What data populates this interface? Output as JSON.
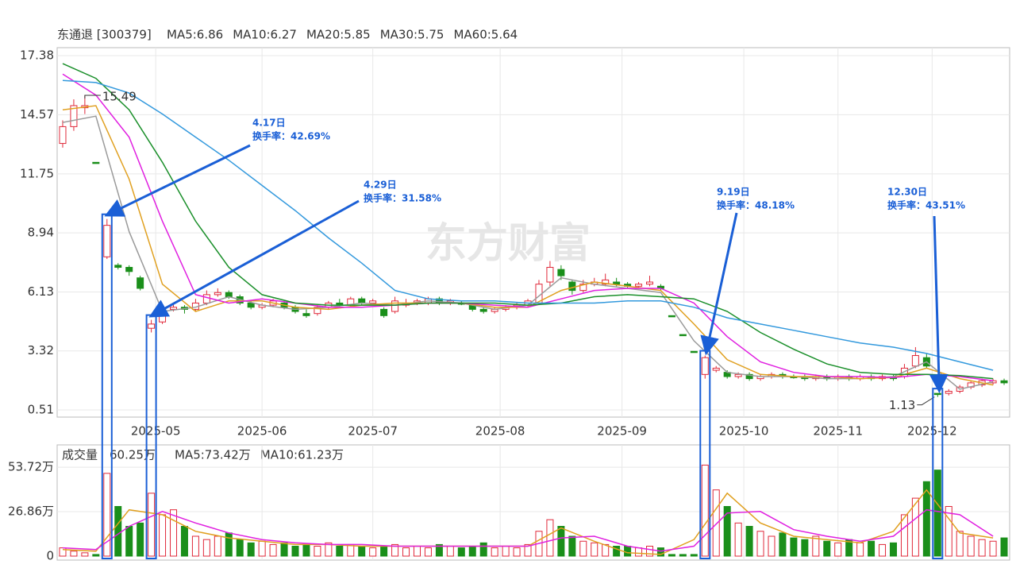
{
  "chart_data": {
    "type": "candlestick",
    "title": "东通退 [300379]",
    "watermark": "东方财富",
    "ma_legend": [
      {
        "name": "MA5:6.86",
        "color": "#9a9a9a"
      },
      {
        "name": "MA10:6.27",
        "color": "#e0a020"
      },
      {
        "name": "MA20:5.85",
        "color": "#e020e0"
      },
      {
        "name": "MA30:5.75",
        "color": "#1a8f2a"
      },
      {
        "name": "MA60:5.64",
        "color": "#3399dd"
      }
    ],
    "ylim": [
      0.17,
      17.76
    ],
    "yticks": [
      17.38,
      14.57,
      11.75,
      8.94,
      6.13,
      3.32,
      0.51
    ],
    "xlim": [
      -0.5,
      85.5
    ],
    "xticks": [
      {
        "value": 8.4,
        "label": "2025-05"
      },
      {
        "value": 18,
        "label": "2025-06"
      },
      {
        "value": 28,
        "label": "2025-07"
      },
      {
        "value": 39.5,
        "label": "2025-08"
      },
      {
        "value": 50.5,
        "label": "2025-09"
      },
      {
        "value": 61.5,
        "label": "2025-10"
      },
      {
        "value": 70,
        "label": "2025-11"
      },
      {
        "value": 78.5,
        "label": "2025-12"
      }
    ],
    "grid": true,
    "up_color": "#e0293a",
    "down_color": "#1a8f1a",
    "candles": [
      [
        13.2,
        14.0,
        14.3,
        13.0
      ],
      [
        14.0,
        15.0,
        15.3,
        13.8
      ],
      [
        14.9,
        15.0,
        15.49,
        14.6
      ],
      [
        12.3,
        12.3,
        12.3,
        12.3
      ],
      [
        7.8,
        9.3,
        9.6,
        7.7
      ],
      [
        7.4,
        7.3,
        7.5,
        7.2
      ],
      [
        7.3,
        7.1,
        7.4,
        6.9
      ],
      [
        6.8,
        6.3,
        6.9,
        6.2
      ],
      [
        4.4,
        4.6,
        4.8,
        4.2
      ],
      [
        4.7,
        5.3,
        5.5,
        4.6
      ],
      [
        5.3,
        5.4,
        5.6,
        5.2
      ],
      [
        5.4,
        5.3,
        5.5,
        5.1
      ],
      [
        5.3,
        5.6,
        5.8,
        5.2
      ],
      [
        5.6,
        6.0,
        6.2,
        5.5
      ],
      [
        6.0,
        6.1,
        6.3,
        5.9
      ],
      [
        6.1,
        5.9,
        6.2,
        5.8
      ],
      [
        5.9,
        5.6,
        6.0,
        5.5
      ],
      [
        5.6,
        5.4,
        5.7,
        5.3
      ],
      [
        5.4,
        5.5,
        5.6,
        5.3
      ],
      [
        5.5,
        5.7,
        5.8,
        5.4
      ],
      [
        5.6,
        5.4,
        5.7,
        5.3
      ],
      [
        5.4,
        5.2,
        5.5,
        5.1
      ],
      [
        5.1,
        5.0,
        5.3,
        4.9
      ],
      [
        5.1,
        5.4,
        5.5,
        5.0
      ],
      [
        5.4,
        5.6,
        5.7,
        5.3
      ],
      [
        5.6,
        5.5,
        5.8,
        5.4
      ],
      [
        5.5,
        5.8,
        5.9,
        5.4
      ],
      [
        5.8,
        5.6,
        5.9,
        5.5
      ],
      [
        5.6,
        5.7,
        5.8,
        5.5
      ],
      [
        5.3,
        5.0,
        5.4,
        4.9
      ],
      [
        5.2,
        5.7,
        5.9,
        5.1
      ],
      [
        5.5,
        5.6,
        5.8,
        5.4
      ],
      [
        5.6,
        5.7,
        5.8,
        5.5
      ],
      [
        5.6,
        5.8,
        5.9,
        5.5
      ],
      [
        5.8,
        5.6,
        5.9,
        5.5
      ],
      [
        5.6,
        5.7,
        5.8,
        5.5
      ],
      [
        5.6,
        5.6,
        5.7,
        5.5
      ],
      [
        5.5,
        5.3,
        5.6,
        5.2
      ],
      [
        5.3,
        5.2,
        5.4,
        5.1
      ],
      [
        5.2,
        5.3,
        5.4,
        5.1
      ],
      [
        5.3,
        5.4,
        5.5,
        5.2
      ],
      [
        5.4,
        5.5,
        5.6,
        5.3
      ],
      [
        5.5,
        5.7,
        5.8,
        5.4
      ],
      [
        5.6,
        6.5,
        6.7,
        5.5
      ],
      [
        6.6,
        7.3,
        7.6,
        6.4
      ],
      [
        7.2,
        6.9,
        7.4,
        6.7
      ],
      [
        6.6,
        6.2,
        6.7,
        6.0
      ],
      [
        6.2,
        6.5,
        6.7,
        6.1
      ],
      [
        6.5,
        6.6,
        6.8,
        6.4
      ],
      [
        6.5,
        6.7,
        7.0,
        6.4
      ],
      [
        6.6,
        6.5,
        6.8,
        6.4
      ],
      [
        6.5,
        6.4,
        6.6,
        6.3
      ],
      [
        6.4,
        6.5,
        6.6,
        6.3
      ],
      [
        6.5,
        6.6,
        6.9,
        6.4
      ],
      [
        6.4,
        6.3,
        6.5,
        6.2
      ],
      [
        5.0,
        5.0,
        5.0,
        5.0
      ],
      [
        4.1,
        4.1,
        4.1,
        4.1
      ],
      [
        3.3,
        3.3,
        3.3,
        3.3
      ],
      [
        2.2,
        3.0,
        3.1,
        2.0
      ],
      [
        2.4,
        2.5,
        2.6,
        2.3
      ],
      [
        2.3,
        2.1,
        2.4,
        2.0
      ],
      [
        2.1,
        2.2,
        2.3,
        2.0
      ],
      [
        2.2,
        2.0,
        2.3,
        1.9
      ],
      [
        2.0,
        2.1,
        2.2,
        1.9
      ],
      [
        2.1,
        2.2,
        2.3,
        2.0
      ],
      [
        2.2,
        2.1,
        2.3,
        2.0
      ],
      [
        2.1,
        2.1,
        2.2,
        2.0
      ],
      [
        2.1,
        2.0,
        2.2,
        1.9
      ],
      [
        2.0,
        2.1,
        2.2,
        1.9
      ],
      [
        2.1,
        2.0,
        2.2,
        1.9
      ],
      [
        2.0,
        2.1,
        2.2,
        1.9
      ],
      [
        2.1,
        2.0,
        2.2,
        1.9
      ],
      [
        2.0,
        2.1,
        2.2,
        1.9
      ],
      [
        2.1,
        2.0,
        2.2,
        1.9
      ],
      [
        2.0,
        2.1,
        2.2,
        1.9
      ],
      [
        2.1,
        2.0,
        2.2,
        1.9
      ],
      [
        2.1,
        2.5,
        2.7,
        2.0
      ],
      [
        2.6,
        3.1,
        3.5,
        2.5
      ],
      [
        3.0,
        2.6,
        3.2,
        2.5
      ],
      [
        1.3,
        1.3,
        1.3,
        1.13
      ],
      [
        1.3,
        1.4,
        1.5,
        1.2
      ],
      [
        1.4,
        1.6,
        1.7,
        1.3
      ],
      [
        1.6,
        1.8,
        1.9,
        1.5
      ],
      [
        1.7,
        1.9,
        2.0,
        1.6
      ],
      [
        1.8,
        1.9,
        2.0,
        1.7
      ],
      [
        1.9,
        1.8,
        2.0,
        1.7
      ]
    ],
    "max_price": 15.49,
    "min_price": 1.13,
    "series": [
      {
        "name": "MA5",
        "color": "#9a9a9a",
        "x": [
          0,
          3,
          6,
          9,
          12,
          15,
          18,
          21,
          24,
          27,
          30,
          33,
          36,
          39,
          42,
          45,
          48,
          51,
          54,
          57,
          60,
          63,
          66,
          69,
          72,
          75,
          78,
          81,
          84
        ],
        "values": [
          14.2,
          14.5,
          9.0,
          5.2,
          5.4,
          5.9,
          5.5,
          5.3,
          5.4,
          5.6,
          5.5,
          5.7,
          5.6,
          5.3,
          5.5,
          6.8,
          6.5,
          6.3,
          6.1,
          3.8,
          2.3,
          2.1,
          2.1,
          2.0,
          2.0,
          2.1,
          2.8,
          1.5,
          1.85
        ]
      },
      {
        "name": "MA10",
        "color": "#e0a020",
        "x": [
          0,
          3,
          6,
          9,
          12,
          15,
          18,
          21,
          24,
          27,
          30,
          33,
          36,
          39,
          42,
          45,
          48,
          51,
          54,
          57,
          60,
          63,
          66,
          69,
          72,
          75,
          78,
          81,
          84
        ],
        "values": [
          14.8,
          15.0,
          11.5,
          6.5,
          5.2,
          5.7,
          5.7,
          5.4,
          5.3,
          5.5,
          5.6,
          5.6,
          5.6,
          5.4,
          5.4,
          6.2,
          6.6,
          6.4,
          6.2,
          4.6,
          2.9,
          2.2,
          2.1,
          2.1,
          2.0,
          2.05,
          2.5,
          2.0,
          1.7
        ]
      },
      {
        "name": "MA20",
        "color": "#e020e0",
        "x": [
          0,
          3,
          6,
          9,
          12,
          15,
          18,
          21,
          24,
          27,
          30,
          33,
          36,
          39,
          42,
          45,
          48,
          51,
          54,
          57,
          60,
          63,
          66,
          69,
          72,
          75,
          78,
          81,
          84
        ],
        "values": [
          16.5,
          15.5,
          13.5,
          9.5,
          6.0,
          5.6,
          5.8,
          5.6,
          5.4,
          5.4,
          5.5,
          5.6,
          5.6,
          5.5,
          5.4,
          5.8,
          6.2,
          6.3,
          6.3,
          5.6,
          4.0,
          2.8,
          2.3,
          2.1,
          2.1,
          2.05,
          2.2,
          2.1,
          1.9
        ]
      },
      {
        "name": "MA30",
        "color": "#1a8f2a",
        "x": [
          0,
          3,
          6,
          9,
          12,
          15,
          18,
          21,
          24,
          27,
          30,
          33,
          36,
          39,
          42,
          45,
          48,
          51,
          54,
          57,
          60,
          63,
          66,
          69,
          72,
          75,
          78,
          81,
          84
        ],
        "values": [
          17.0,
          16.3,
          14.8,
          12.3,
          9.5,
          7.3,
          6.0,
          5.6,
          5.5,
          5.5,
          5.5,
          5.6,
          5.6,
          5.6,
          5.5,
          5.6,
          5.9,
          6.0,
          5.9,
          5.8,
          5.2,
          4.2,
          3.4,
          2.7,
          2.3,
          2.2,
          2.2,
          2.15,
          2.0
        ]
      },
      {
        "name": "MA60",
        "color": "#3399dd",
        "x": [
          0,
          3,
          6,
          9,
          12,
          15,
          18,
          21,
          24,
          27,
          30,
          33,
          36,
          39,
          42,
          45,
          48,
          51,
          54,
          57,
          60,
          63,
          66,
          69,
          72,
          75,
          78,
          81,
          84
        ],
        "values": [
          16.2,
          16.1,
          15.6,
          14.6,
          13.5,
          12.4,
          11.2,
          10.0,
          8.7,
          7.5,
          6.2,
          5.8,
          5.7,
          5.7,
          5.6,
          5.6,
          5.6,
          5.7,
          5.7,
          5.4,
          4.9,
          4.6,
          4.3,
          4.0,
          3.7,
          3.5,
          3.2,
          2.8,
          2.4
        ]
      }
    ],
    "annotations": [
      {
        "candle": 4,
        "date": "4.17日",
        "rate": "换手率：42.69%"
      },
      {
        "candle": 8,
        "date": "4.29日",
        "rate": "换手率：31.58%"
      },
      {
        "candle": 58,
        "date": "9.19日",
        "rate": "换手率：48.18%"
      },
      {
        "candle": 79,
        "date": "12.30日",
        "rate": "换手率：43.51%"
      }
    ],
    "volume": {
      "title": "成交量",
      "current": "60.25万",
      "legend": [
        {
          "name": "MA5:73.42万",
          "color": "#e0a020"
        },
        {
          "name": "MA10:61.23万",
          "color": "#e020e0"
        }
      ],
      "ylim": [
        -2.4,
        67.2
      ],
      "yticks": [
        {
          "value": 53.72,
          "label": "53.72万"
        },
        {
          "value": 26.86,
          "label": "26.86万"
        },
        0
      ],
      "values": [
        5,
        3,
        2,
        1,
        50,
        30,
        18,
        20,
        38,
        25,
        28,
        18,
        12,
        10,
        12,
        14,
        10,
        8,
        9,
        7,
        8,
        6,
        7,
        6,
        8,
        6,
        7,
        6,
        5,
        6,
        7,
        5,
        6,
        5,
        7,
        6,
        5,
        6,
        8,
        5,
        6,
        5,
        7,
        15,
        22,
        18,
        12,
        9,
        8,
        7,
        6,
        6,
        5,
        6,
        5,
        1,
        1,
        1,
        55,
        40,
        30,
        20,
        18,
        15,
        12,
        14,
        11,
        10,
        12,
        9,
        8,
        10,
        8,
        9,
        7,
        8,
        25,
        35,
        45,
        52,
        30,
        15,
        12,
        10,
        9,
        11
      ],
      "series": [
        {
          "name": "MA5",
          "color": "#e0a020",
          "x": [
            0,
            3,
            6,
            9,
            12,
            15,
            18,
            21,
            24,
            27,
            30,
            33,
            36,
            39,
            42,
            45,
            48,
            51,
            54,
            57,
            60,
            63,
            66,
            69,
            72,
            75,
            78,
            81,
            84
          ],
          "values": [
            4,
            3,
            28,
            25,
            15,
            11,
            9,
            7,
            7,
            6,
            6,
            6,
            6,
            6,
            6,
            17,
            9,
            2,
            1,
            10,
            38,
            20,
            12,
            10,
            8,
            15,
            40,
            14,
            11
          ]
        },
        {
          "name": "MA10",
          "color": "#e020e0",
          "x": [
            0,
            3,
            6,
            9,
            12,
            15,
            18,
            21,
            24,
            27,
            30,
            33,
            36,
            39,
            42,
            45,
            48,
            51,
            54,
            57,
            60,
            63,
            66,
            69,
            72,
            75,
            78,
            81,
            84
          ],
          "values": [
            5,
            4,
            18,
            27,
            20,
            14,
            10,
            8,
            7,
            7,
            6,
            6,
            6,
            6,
            6,
            11,
            12,
            6,
            3,
            6,
            26,
            27,
            16,
            12,
            9,
            12,
            28,
            25,
            12
          ]
        }
      ]
    }
  }
}
